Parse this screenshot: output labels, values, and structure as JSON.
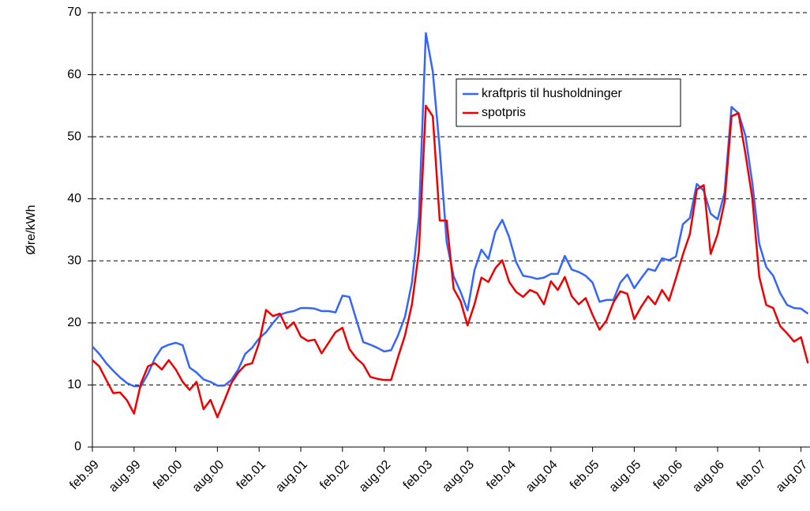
{
  "chart_data": {
    "type": "line",
    "y_label": "Øre/kWh",
    "categories": [
      "feb.99",
      null,
      null,
      null,
      null,
      null,
      "aug.99",
      null,
      null,
      null,
      null,
      null,
      "feb.00",
      null,
      null,
      null,
      null,
      null,
      "aug.00",
      null,
      null,
      null,
      null,
      null,
      "feb.01",
      null,
      null,
      null,
      null,
      null,
      "aug.01",
      null,
      null,
      null,
      null,
      null,
      "feb.02",
      null,
      null,
      null,
      null,
      null,
      "aug.02",
      null,
      null,
      null,
      null,
      null,
      "feb.03",
      null,
      null,
      null,
      null,
      null,
      "aug.03",
      null,
      null,
      null,
      null,
      null,
      "feb.04",
      null,
      null,
      null,
      null,
      null,
      "aug.04",
      null,
      null,
      null,
      null,
      null,
      "feb.05",
      null,
      null,
      null,
      null,
      null,
      "aug.05",
      null,
      null,
      null,
      null,
      null,
      "feb.06",
      null,
      null,
      null,
      null,
      null,
      "aug.06",
      null,
      null,
      null,
      null,
      null,
      "feb.07",
      null,
      null,
      null,
      null,
      null,
      "aug.07",
      null
    ],
    "series": [
      {
        "name": "kraftpris til husholdninger",
        "color": "#3366ff",
        "values": [
          16.2,
          15,
          13.5,
          12.3,
          11.2,
          10.3,
          9.8,
          9.8,
          11.8,
          14.3,
          16.0,
          16.5,
          16.8,
          16.4,
          12.8,
          12.0,
          10.9,
          10.5,
          9.9,
          9.9,
          10.8,
          12.5,
          15.0,
          16.0,
          17.5,
          18.5,
          20.0,
          21.3,
          21.7,
          21.9,
          22.4,
          22.4,
          22.3,
          21.9,
          21.9,
          21.7,
          24.4,
          24.2,
          20.5,
          16.9,
          16.5,
          16,
          15.4,
          15.6,
          18.0,
          21.0,
          26.5,
          37,
          66.7,
          60.5,
          48,
          33,
          27.5,
          25.0,
          22.0,
          28.5,
          31.8,
          30.3,
          34.7,
          36.6,
          33.8,
          29.8,
          27.6,
          27.4,
          27.1,
          27.3,
          27.9,
          27.9,
          30.8,
          28.6,
          28.2,
          27.6,
          26.5,
          23.4,
          23.7,
          23.7,
          26.5,
          27.8,
          25.6,
          27.2,
          28.7,
          28.4,
          30.4,
          30.1,
          30.7,
          35.9,
          36.9,
          42.4,
          41.3,
          37.6,
          36.7,
          41.0,
          54.8,
          53.8,
          50.2,
          42.5,
          32.7,
          29.0,
          27.6,
          24.8,
          22.9,
          22.4,
          22.3,
          21.5
        ]
      },
      {
        "name": "spotpris",
        "color": "#ee0000",
        "values": [
          14,
          13,
          10.8,
          8.7,
          8.8,
          7.5,
          5.4,
          10.3,
          13,
          13.5,
          12.5,
          14,
          12.5,
          10.5,
          9.2,
          10.5,
          6.1,
          7.6,
          4.8,
          7.5,
          10.3,
          12,
          13.2,
          13.5,
          16.8,
          22.1,
          21.1,
          21.5,
          19.1,
          20.1,
          17.8,
          17.1,
          17.3,
          15.1,
          16.8,
          18.5,
          19.2,
          15.8,
          14.3,
          13.3,
          11.3,
          11.0,
          10.8,
          10.8,
          14.5,
          18,
          23,
          31.5,
          55,
          53.3,
          36.5,
          36.5,
          25.5,
          23.5,
          19.6,
          23,
          27.3,
          26.6,
          28.8,
          30.1,
          26.6,
          25.0,
          24.2,
          25.3,
          24.8,
          23.0,
          26.7,
          25.3,
          27.4,
          24.3,
          23.0,
          24.0,
          21.3,
          18.9,
          20.4,
          23.3,
          25.1,
          24.7,
          20.6,
          22.6,
          24.3,
          23.0,
          25.3,
          23.6,
          27.2,
          31.0,
          34.3,
          41.5,
          42.2,
          31.1,
          34.3,
          39.5,
          53.3,
          53.8,
          47.3,
          40,
          27.4,
          22.9,
          22.4,
          19.5,
          18.3,
          17.0,
          17.7,
          13.5
        ]
      }
    ],
    "ylim": [
      0,
      70
    ],
    "yticks": [
      0,
      10,
      20,
      30,
      40,
      50,
      60,
      70
    ],
    "grid": true,
    "legend": "upper right"
  }
}
